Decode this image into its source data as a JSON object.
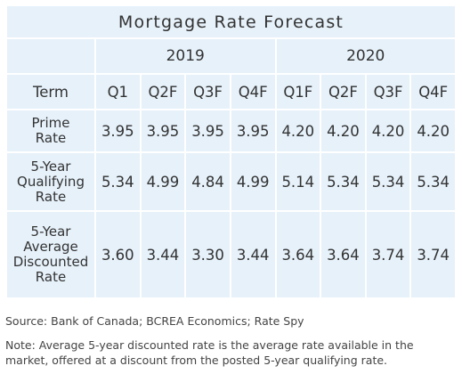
{
  "table": {
    "title": "Mortgage Rate Forecast",
    "years": [
      "2019",
      "2020"
    ],
    "term_header": "Term",
    "quarters": [
      "Q1",
      "Q2F",
      "Q3F",
      "Q4F",
      "Q1F",
      "Q2F",
      "Q3F",
      "Q4F"
    ],
    "rows": [
      {
        "label": [
          "Prime",
          "Rate"
        ],
        "values": [
          "3.95",
          "3.95",
          "3.95",
          "3.95",
          "4.20",
          "4.20",
          "4.20",
          "4.20"
        ]
      },
      {
        "label": [
          "5-Year",
          "Qualifying",
          "Rate"
        ],
        "values": [
          "5.34",
          "4.99",
          "4.84",
          "4.99",
          "5.14",
          "5.34",
          "5.34",
          "5.34"
        ]
      },
      {
        "label": [
          "5-Year",
          "Average",
          "Discounted",
          "Rate"
        ],
        "values": [
          "3.60",
          "3.44",
          "3.30",
          "3.44",
          "3.64",
          "3.64",
          "3.74",
          "3.74"
        ]
      }
    ]
  },
  "source": "Source: Bank of Canada; BCREA Economics; Rate Spy",
  "note": "Note: Average 5-year discounted rate is the average rate available in the market, offered at a discount from the posted 5-year qualifying rate.",
  "colors": {
    "cell_bg": "#e6f1fa",
    "grid": "#ffffff",
    "title_text": "#3d5a6a"
  },
  "chart_data": {
    "type": "table",
    "title": "Mortgage Rate Forecast",
    "columns": [
      "2019 Q1",
      "2019 Q2F",
      "2019 Q3F",
      "2019 Q4F",
      "2020 Q1F",
      "2020 Q2F",
      "2020 Q3F",
      "2020 Q4F"
    ],
    "series": [
      {
        "name": "Prime Rate",
        "values": [
          3.95,
          3.95,
          3.95,
          3.95,
          4.2,
          4.2,
          4.2,
          4.2
        ]
      },
      {
        "name": "5-Year Qualifying Rate",
        "values": [
          5.34,
          4.99,
          4.84,
          4.99,
          5.14,
          5.34,
          5.34,
          5.34
        ]
      },
      {
        "name": "5-Year Average Discounted Rate",
        "values": [
          3.6,
          3.44,
          3.3,
          3.44,
          3.64,
          3.64,
          3.74,
          3.74
        ]
      }
    ]
  }
}
